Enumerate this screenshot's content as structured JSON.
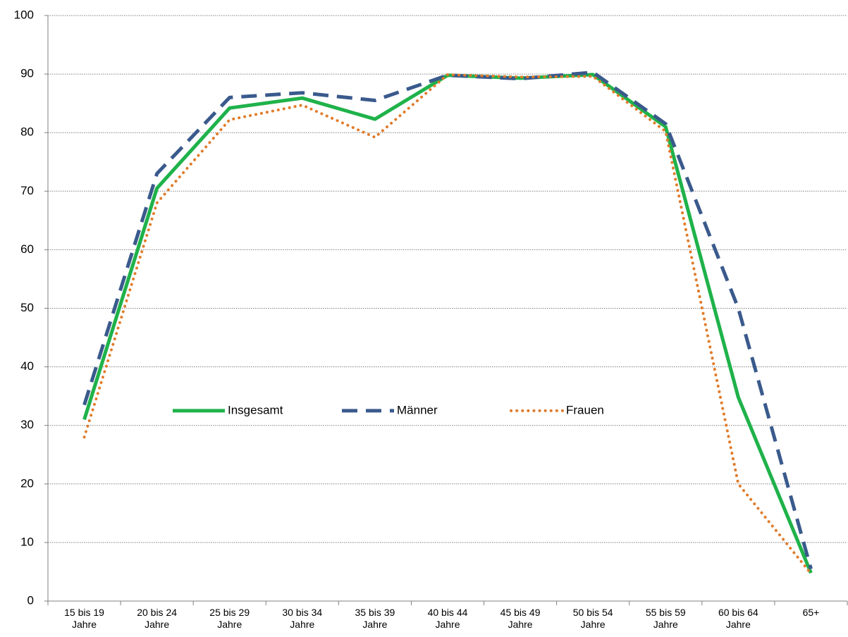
{
  "chart_data": {
    "type": "line",
    "categories": [
      "15 bis 19 Jahre",
      "20 bis 24 Jahre",
      "25 bis 29 Jahre",
      "30 bis 34 Jahre",
      "35 bis 39 Jahre",
      "40 bis 44 Jahre",
      "45 bis 49 Jahre",
      "50 bis 54 Jahre",
      "55 bis 59 Jahre",
      "60 bis 64 Jahre",
      "65+"
    ],
    "series": [
      {
        "name": "Insgesamt",
        "color": "#1fb24a",
        "style": "solid",
        "values": [
          31,
          70.5,
          84.2,
          85.9,
          82.3,
          89.8,
          89.3,
          89.9,
          81,
          34.8,
          4.8
        ]
      },
      {
        "name": "Männer",
        "color": "#3a5a8c",
        "style": "dashed",
        "values": [
          33.5,
          73,
          86,
          86.8,
          85.5,
          89.8,
          89.2,
          90.3,
          81.5,
          50,
          5.5
        ]
      },
      {
        "name": "Frauen",
        "color": "#e07b2a",
        "style": "dotted",
        "values": [
          28,
          68,
          82.2,
          84.7,
          79.2,
          89.9,
          89.5,
          89.6,
          80.2,
          20,
          4.7
        ]
      }
    ],
    "ylim": [
      0,
      100
    ],
    "yticks": [
      0,
      10,
      20,
      30,
      40,
      50,
      60,
      70,
      80,
      90,
      100
    ],
    "grid": true,
    "legend": "center"
  }
}
